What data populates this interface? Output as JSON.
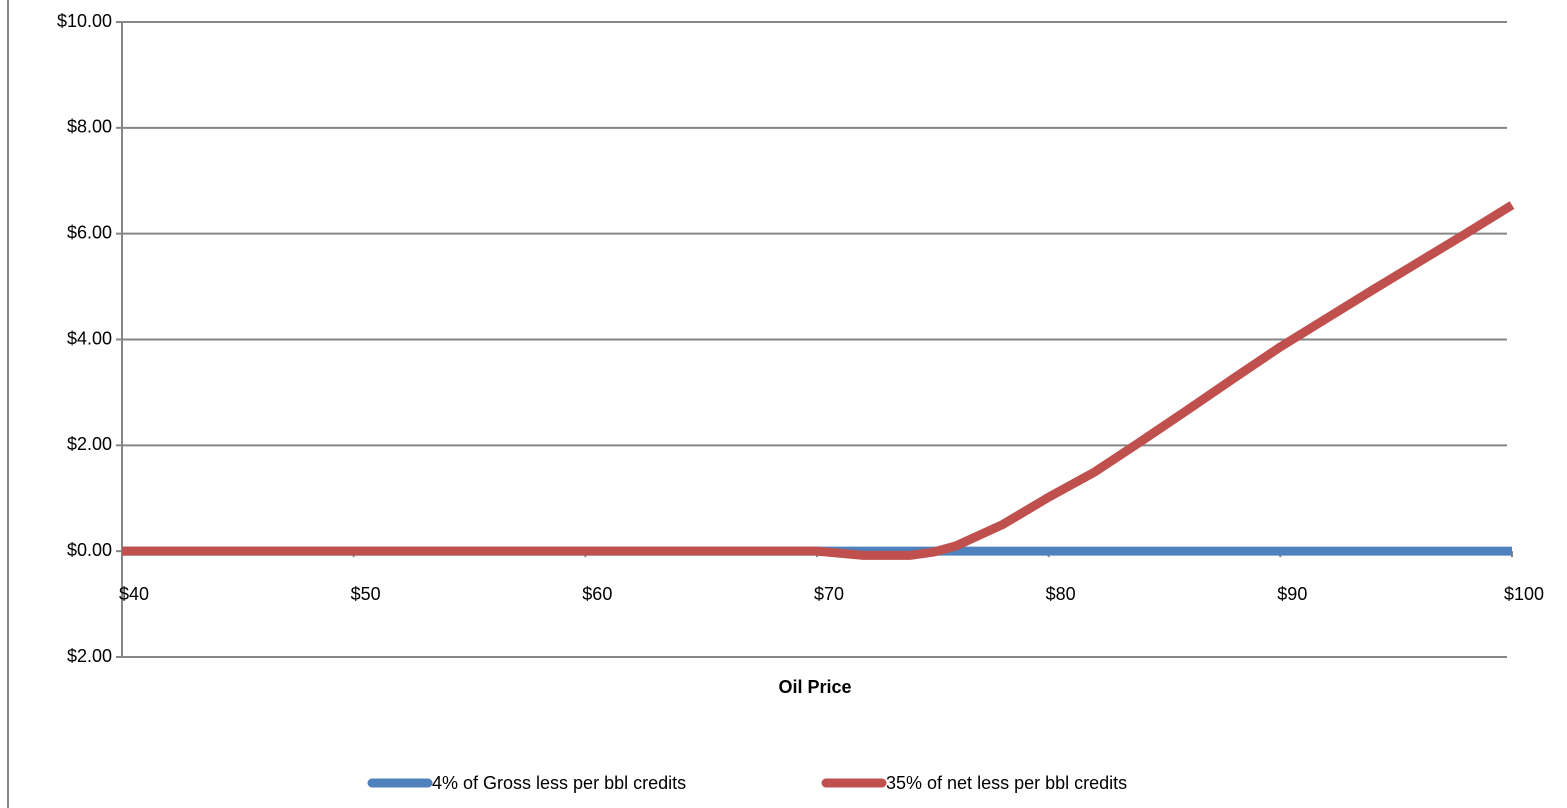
{
  "chart_data": {
    "type": "line",
    "x_label": "Oil Price",
    "x": [
      40,
      50,
      60,
      70,
      72,
      74,
      75,
      76,
      78,
      80,
      82,
      84,
      86,
      88,
      90,
      92,
      94,
      96,
      98,
      100
    ],
    "series": [
      {
        "name": "4% of Gross less per bbl credits",
        "color": "#4f81bd",
        "values": [
          0,
          0,
          0,
          0,
          0,
          0,
          0,
          0,
          0,
          0,
          0,
          0,
          0,
          0,
          0,
          0,
          0,
          0,
          0,
          0
        ]
      },
      {
        "name": "35% of net less per bbl credits",
        "color": "#c0504d",
        "values": [
          0,
          0,
          0,
          0,
          -0.08,
          -0.08,
          -0.02,
          0.1,
          0.5,
          1.02,
          1.5,
          2.08,
          2.67,
          3.27,
          3.86,
          4.4,
          4.94,
          5.47,
          6.0,
          6.54
        ]
      }
    ],
    "xlim": [
      40,
      100
    ],
    "xticks": [
      {
        "value": 40,
        "label": "$40"
      },
      {
        "value": 50,
        "label": "$50"
      },
      {
        "value": 60,
        "label": "$60"
      },
      {
        "value": 70,
        "label": "$70"
      },
      {
        "value": 80,
        "label": "$80"
      },
      {
        "value": 90,
        "label": "$90"
      },
      {
        "value": 100,
        "label": "$100"
      }
    ],
    "ylim": [
      -2,
      10
    ],
    "yticks": [
      {
        "value": -2,
        "label": "$2.00"
      },
      {
        "value": 0,
        "label": "$0.00"
      },
      {
        "value": 2,
        "label": "$2.00"
      },
      {
        "value": 4,
        "label": "$4.00"
      },
      {
        "value": 6,
        "label": "$6.00"
      },
      {
        "value": 8,
        "label": "$8.00"
      },
      {
        "value": 10,
        "label": "$10.00"
      }
    ],
    "negative_tick_color": "#ff0000",
    "grid": true,
    "legend": "bottom"
  }
}
